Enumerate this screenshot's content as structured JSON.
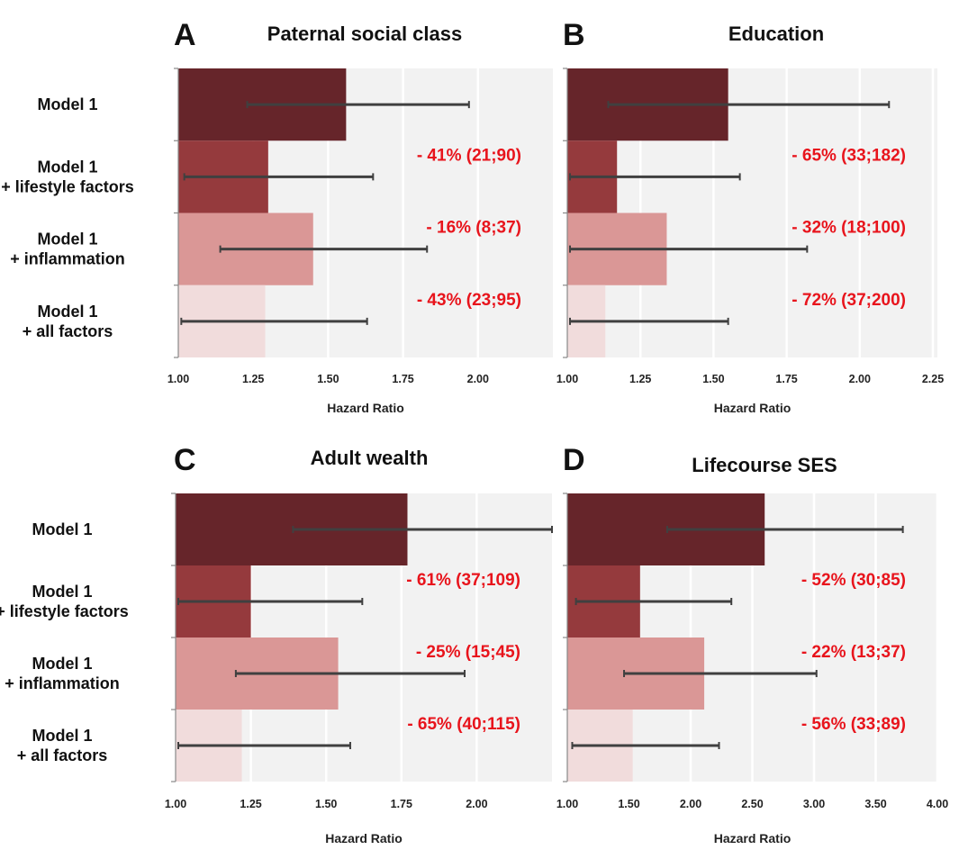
{
  "chart_data": [
    {
      "type": "bar",
      "panel": "A",
      "title": "Paternal social class",
      "xlabel": "Hazard Ratio",
      "categories": [
        "Model 1",
        "Model 1 + lifestyle factors",
        "Model 1 + inflammation",
        "Model 1 + all factors"
      ],
      "values": [
        1.56,
        1.3,
        1.45,
        1.29
      ],
      "ci_low": [
        1.23,
        1.02,
        1.14,
        1.01
      ],
      "ci_high": [
        1.97,
        1.65,
        1.83,
        1.63
      ],
      "annotations": [
        "",
        "- 41% (21;90)",
        "- 16% (8;37)",
        "- 43% (23;95)"
      ],
      "xlim": [
        1.0,
        2.25
      ],
      "xticks": [
        "1.00",
        "1.25",
        "1.50",
        "1.75",
        "2.00"
      ],
      "grid": true
    },
    {
      "type": "bar",
      "panel": "B",
      "title": "Education",
      "xlabel": "Hazard Ratio",
      "categories": [
        "Model 1",
        "Model 1 + lifestyle factors",
        "Model 1 + inflammation",
        "Model 1 + all factors"
      ],
      "values": [
        1.55,
        1.17,
        1.34,
        1.13
      ],
      "ci_low": [
        1.14,
        1.0,
        1.0,
        1.0
      ],
      "ci_high": [
        2.1,
        1.59,
        1.82,
        1.55
      ],
      "annotations": [
        "",
        "- 65% (33;182)",
        "- 32% (18;100)",
        "- 72% (37;200)"
      ],
      "xlim": [
        1.0,
        2.25
      ],
      "xticks": [
        "1.00",
        "1.25",
        "1.50",
        "1.75",
        "2.00",
        "2.25"
      ],
      "grid": true
    },
    {
      "type": "bar",
      "panel": "C",
      "title": "Adult wealth",
      "xlabel": "Hazard Ratio",
      "categories": [
        "Model 1",
        "Model 1 + lifestyle factors",
        "Model 1 + inflammation",
        "Model 1 + all factors"
      ],
      "values": [
        1.77,
        1.25,
        1.54,
        1.22
      ],
      "ci_low": [
        1.39,
        1.0,
        1.2,
        1.0
      ],
      "ci_high": [
        2.25,
        1.62,
        1.96,
        1.58
      ],
      "annotations": [
        "",
        "- 61% (37;109)",
        "- 25% (15;45)",
        "- 65% (40;115)"
      ],
      "xlim": [
        1.0,
        2.25
      ],
      "xticks": [
        "1.00",
        "1.25",
        "1.50",
        "1.75",
        "2.00"
      ],
      "grid": true
    },
    {
      "type": "bar",
      "panel": "D",
      "title": "Lifecourse SES",
      "xlabel": "Hazard Ratio",
      "categories": [
        "Model 1",
        "Model 1 + lifestyle factors",
        "Model 1 + inflammation",
        "Model 1 + all factors"
      ],
      "values": [
        2.6,
        1.59,
        2.11,
        1.53
      ],
      "ci_low": [
        1.81,
        1.07,
        1.46,
        1.04
      ],
      "ci_high": [
        3.72,
        2.33,
        3.02,
        2.23
      ],
      "annotations": [
        "",
        "- 52% (30;85)",
        "- 22% (13;37)",
        "- 56% (33;89)"
      ],
      "xlim": [
        1.0,
        4.0
      ],
      "xticks": [
        "1.00",
        "1.50",
        "2.00",
        "2.50",
        "3.00",
        "3.50",
        "4.00"
      ],
      "grid": true
    }
  ],
  "row_label_lines": [
    [
      "Model 1"
    ],
    [
      "Model 1",
      "+ lifestyle factors"
    ],
    [
      "Model 1",
      "+ inflammation"
    ],
    [
      "Model 1",
      "+ all factors"
    ]
  ],
  "colors": {
    "bars": [
      "#66252a",
      "#953a3d",
      "#da9796",
      "#f1dcdc"
    ],
    "plot_bg": "#f2f2f2",
    "gridline": "#ffffff",
    "error_bar": "#404040",
    "annotation": "#e8141c",
    "axis": "#888888"
  }
}
